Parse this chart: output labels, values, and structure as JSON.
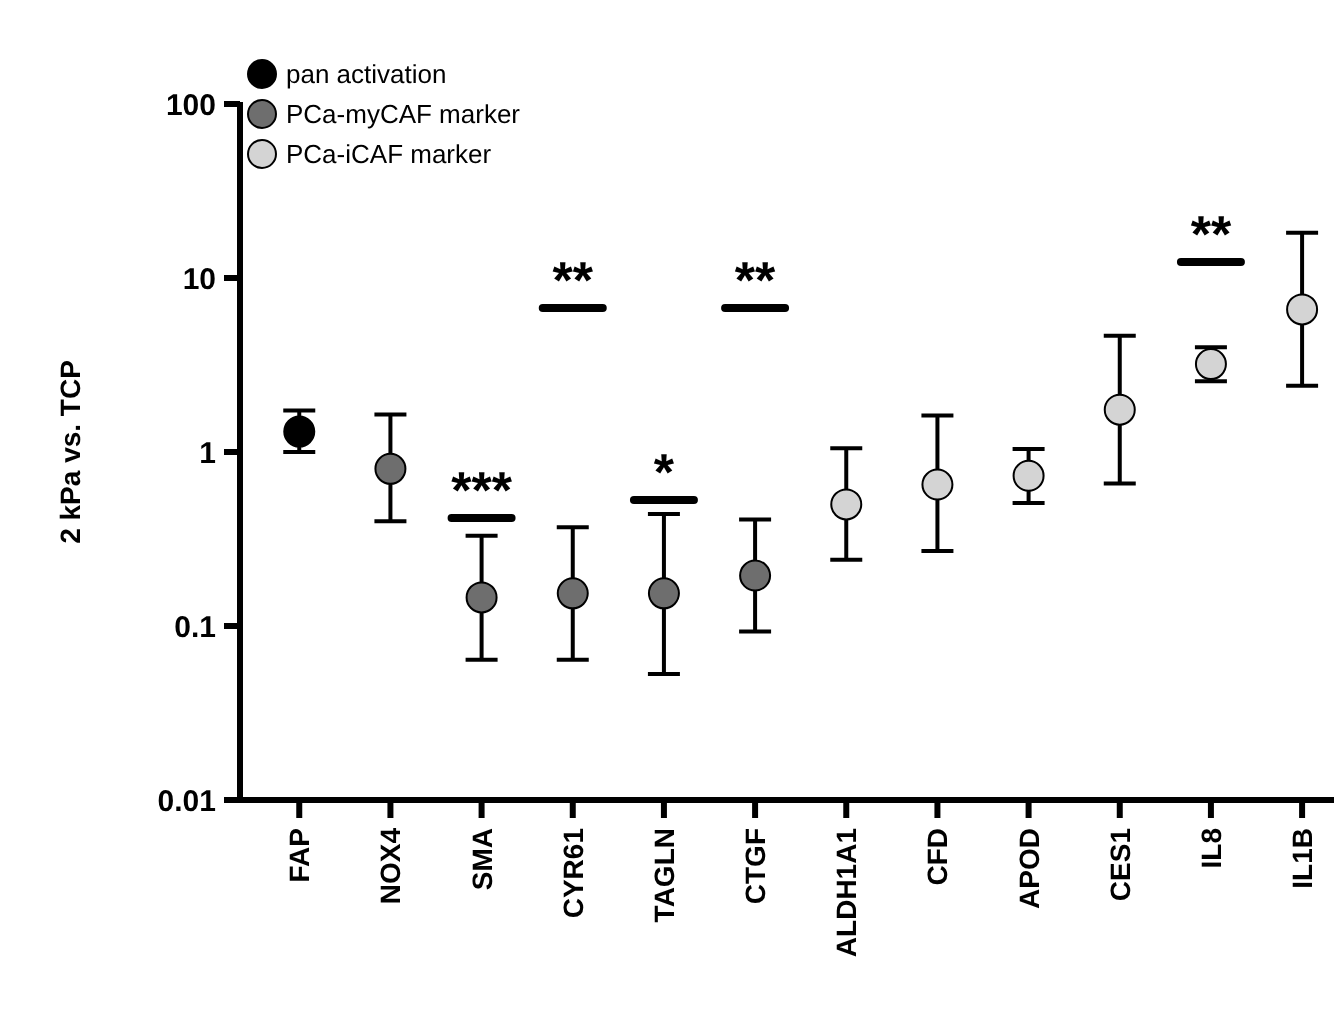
{
  "chart_data": {
    "type": "scatter",
    "ylabel": "2 kPa vs. TCP",
    "log": "y",
    "ylim": [
      0.01,
      100
    ],
    "yticks": [
      0.01,
      0.1,
      1,
      10,
      100
    ],
    "legend": "top left",
    "marker": "circle",
    "categories": [
      "FAP",
      "NOX4",
      "SMA",
      "CYR61",
      "TAGLN",
      "CTGF",
      "ALDH1A1",
      "CFD",
      "APOD",
      "CES1",
      "IL8",
      "IL1B"
    ],
    "series": [
      {
        "name": "pan activation",
        "color": "#000000",
        "values": [
          1.31,
          null,
          null,
          null,
          null,
          null,
          null,
          null,
          null,
          null,
          null,
          null
        ],
        "errors": [
          [
            1.0,
            1.73
          ],
          null,
          null,
          null,
          null,
          null,
          null,
          null,
          null,
          null,
          null,
          null
        ]
      },
      {
        "name": "PCa-myCAF marker",
        "color": "#6e6e6e",
        "values": [
          null,
          0.8,
          0.146,
          0.154,
          0.154,
          0.195,
          null,
          null,
          null,
          null,
          null,
          null
        ],
        "errors": [
          null,
          [
            0.4,
            1.64
          ],
          [
            0.064,
            0.33
          ],
          [
            0.064,
            0.37
          ],
          [
            0.053,
            0.44
          ],
          [
            0.093,
            0.41
          ],
          null,
          null,
          null,
          null,
          null,
          null
        ]
      },
      {
        "name": "PCa-iCAF marker",
        "color": "#d4d4d4",
        "values": [
          null,
          null,
          null,
          null,
          null,
          null,
          0.5,
          0.65,
          0.73,
          1.75,
          3.2,
          6.6
        ],
        "errors": [
          null,
          null,
          null,
          null,
          null,
          null,
          [
            0.24,
            1.05
          ],
          [
            0.27,
            1.62
          ],
          [
            0.51,
            1.04
          ],
          [
            0.66,
            4.65
          ],
          [
            2.55,
            4.0
          ],
          [
            2.4,
            18.2
          ]
        ]
      }
    ],
    "annotations": [
      "***",
      "**",
      "*",
      "**",
      "**"
    ]
  }
}
